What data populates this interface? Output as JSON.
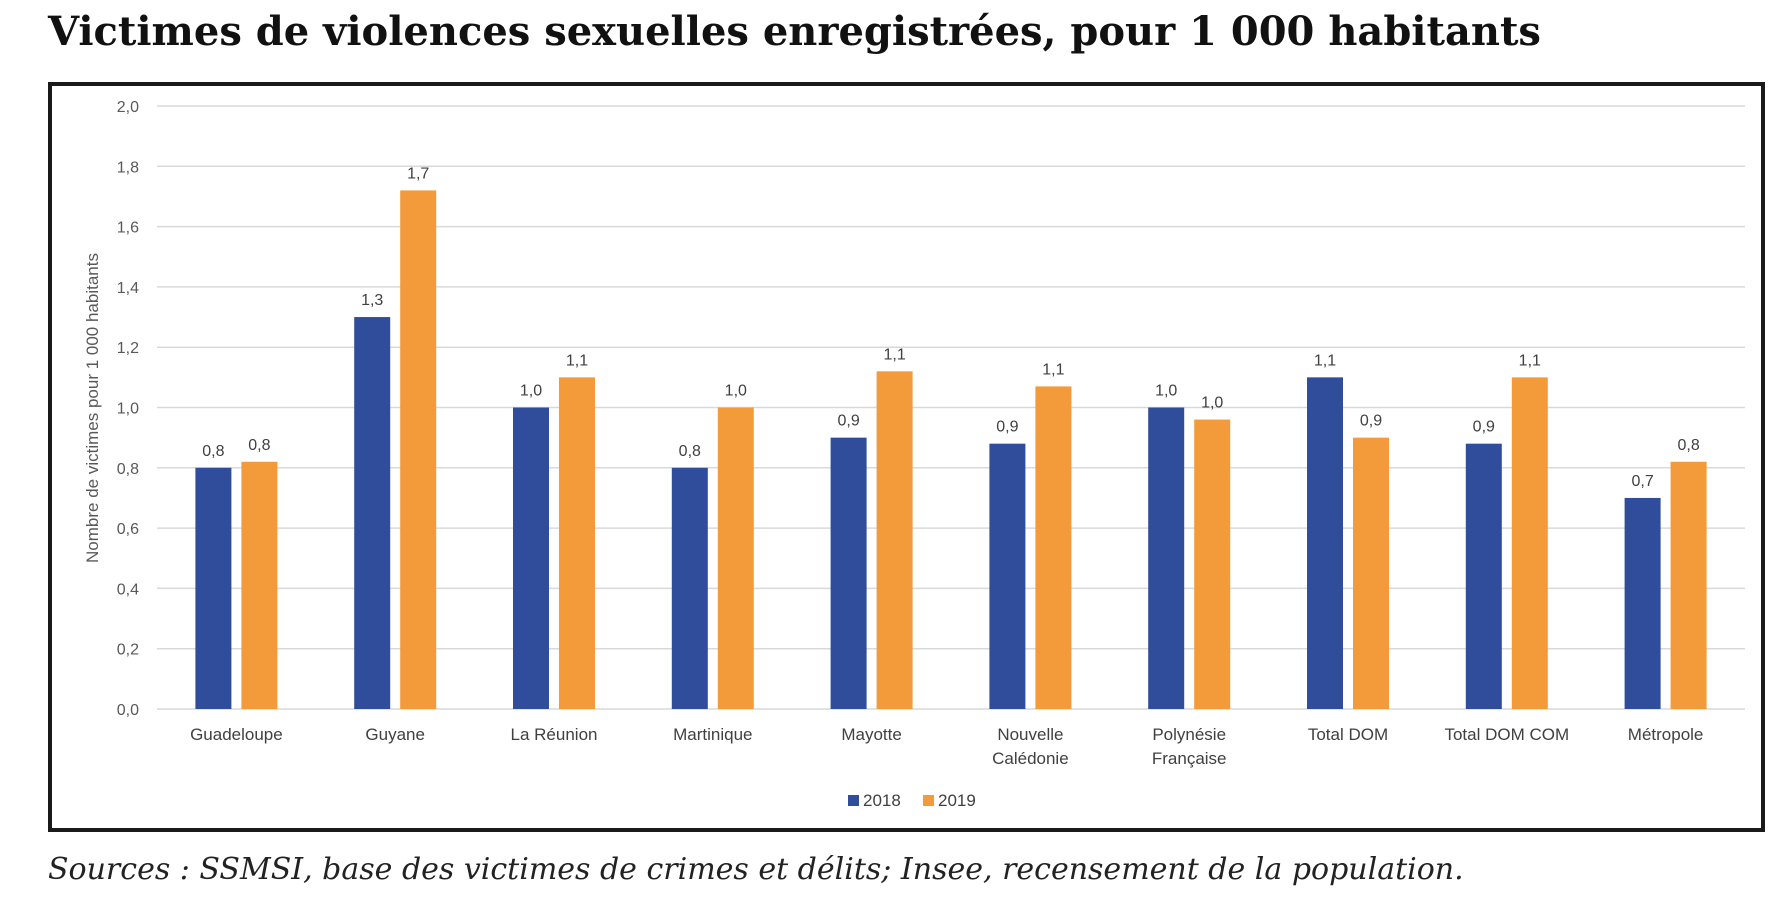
{
  "chart_data": {
    "type": "bar",
    "title": "Victimes de violences sexuelles enregistrées, pour 1 000 habitants",
    "ylabel": "Nombre de victimes pour 1 000 habitants",
    "xlabel": "",
    "ylim": [
      0,
      2.0
    ],
    "yticks": [
      "0,0",
      "0,2",
      "0,4",
      "0,6",
      "0,8",
      "1,0",
      "1,2",
      "1,4",
      "1,6",
      "1,8",
      "2,0"
    ],
    "grid": true,
    "legend_position": "bottom",
    "categories": [
      [
        "Guadeloupe"
      ],
      [
        "Guyane"
      ],
      [
        "La Réunion"
      ],
      [
        "Martinique"
      ],
      [
        "Mayotte"
      ],
      [
        "Nouvelle",
        "Calédonie"
      ],
      [
        "Polynésie",
        "Française"
      ],
      [
        "Total DOM"
      ],
      [
        "Total DOM COM"
      ],
      [
        "Métropole"
      ]
    ],
    "series": [
      {
        "name": "2018",
        "color": "#2f4d9b",
        "values": [
          0.8,
          1.3,
          1.0,
          0.8,
          0.9,
          0.88,
          1.0,
          1.1,
          0.88,
          0.7
        ],
        "labels": [
          "0,8",
          "1,3",
          "1,0",
          "0,8",
          "0,9",
          "0,9",
          "1,0",
          "1,1",
          "0,9",
          "0,7"
        ]
      },
      {
        "name": "2019",
        "color": "#f39a3b",
        "values": [
          0.82,
          1.72,
          1.1,
          1.0,
          1.12,
          1.07,
          0.96,
          0.9,
          1.1,
          0.82
        ],
        "labels": [
          "0,8",
          "1,7",
          "1,1",
          "1,0",
          "1,1",
          "1,1",
          "1,0",
          "0,9",
          "1,1",
          "0,8"
        ]
      }
    ],
    "source": "Sources : SSMSI, base des victimes de crimes et délits; Insee, recensement de la population."
  }
}
